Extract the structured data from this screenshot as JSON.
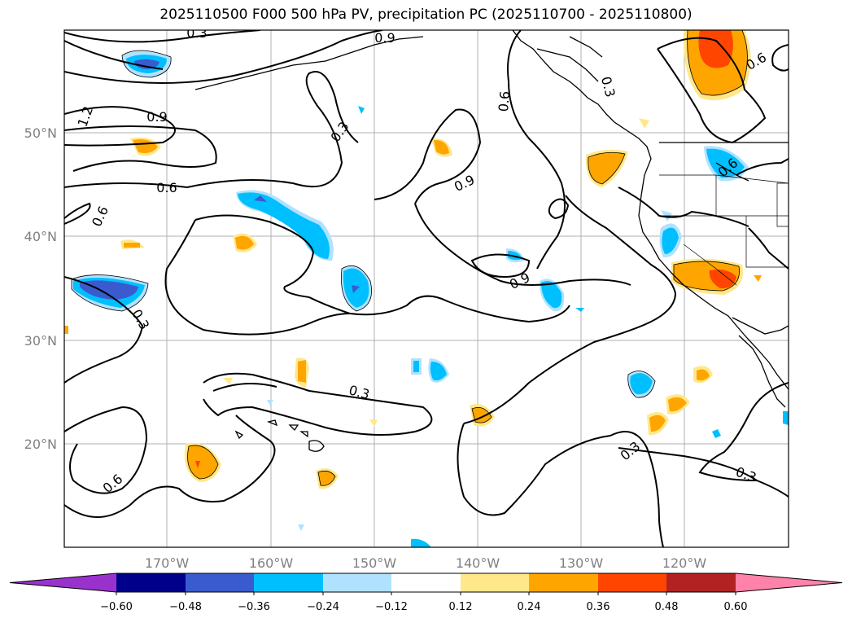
{
  "title": "2025110500 F000 500 hPa PV, precipitation PC (2025110700 - 2025110800)",
  "map": {
    "lat_labels": [
      "50°N",
      "40°N",
      "30°N",
      "20°N"
    ],
    "lon_labels": [
      "170°W",
      "160°W",
      "150°W",
      "140°W",
      "130°W",
      "120°W"
    ],
    "contour_labels": [
      "0.3",
      "0.9",
      "1.2",
      "0.9",
      "0.6",
      "0.6",
      "0.3",
      "0.9",
      "0.3",
      "0.6",
      "0.3",
      "0.9",
      "0.6",
      "0.6",
      "0.3",
      "0.3",
      "0.6",
      "0.3",
      "0.6",
      "0.3"
    ]
  },
  "colorbar": {
    "ticks": [
      "−0.60",
      "−0.48",
      "−0.36",
      "−0.24",
      "−0.12",
      "0.12",
      "0.24",
      "0.36",
      "0.48",
      "0.60"
    ],
    "colors": [
      "#9932cc",
      "#00008b",
      "#3a5bd0",
      "#00bfff",
      "#b0e2ff",
      "#ffffff",
      "#ffe88a",
      "#ffa500",
      "#ff4500",
      "#b22222",
      "#ff82ab"
    ]
  },
  "colors": {
    "blue_dark": "#3a5bd0",
    "blue": "#00bfff",
    "blue_light": "#b0e2ff",
    "yellow": "#ffe88a",
    "orange": "#ffa500",
    "red": "#ff4500"
  }
}
